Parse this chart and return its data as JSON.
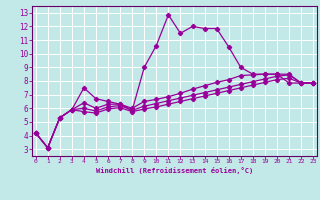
{
  "xlabel": "Windchill (Refroidissement éolien,°C)",
  "background_color": "#c2e8e8",
  "grid_color": "#b0d8d8",
  "line_color": "#990099",
  "axis_color": "#660066",
  "x_ticks": [
    0,
    1,
    2,
    3,
    4,
    5,
    6,
    7,
    8,
    9,
    10,
    11,
    12,
    13,
    14,
    15,
    16,
    17,
    18,
    19,
    20,
    21,
    22,
    23
  ],
  "y_ticks": [
    3,
    4,
    5,
    6,
    7,
    8,
    9,
    10,
    11,
    12,
    13
  ],
  "xlim": [
    -0.3,
    23.3
  ],
  "ylim": [
    2.5,
    13.5
  ],
  "series": [
    {
      "x": [
        0,
        1,
        2,
        3,
        4,
        5,
        6,
        7,
        8,
        9,
        10,
        11,
        12,
        13,
        14,
        15,
        16,
        17,
        18,
        19,
        20,
        21,
        22,
        23
      ],
      "y": [
        4.2,
        3.1,
        5.3,
        5.9,
        7.5,
        6.7,
        6.5,
        6.3,
        5.85,
        9.0,
        10.6,
        12.85,
        11.5,
        12.0,
        11.85,
        11.85,
        10.5,
        9.0,
        8.5,
        8.5,
        8.5,
        7.85,
        7.85,
        7.85
      ]
    },
    {
      "x": [
        0,
        1,
        2,
        3,
        4,
        5,
        6,
        7,
        8,
        9,
        10,
        11,
        12,
        13,
        14,
        15,
        16,
        17,
        18,
        19,
        20,
        21,
        22,
        23
      ],
      "y": [
        4.2,
        3.1,
        5.3,
        5.9,
        6.4,
        6.0,
        6.3,
        6.3,
        6.0,
        6.5,
        6.65,
        6.85,
        7.1,
        7.4,
        7.65,
        7.9,
        8.1,
        8.4,
        8.45,
        8.5,
        8.5,
        8.5,
        7.85,
        7.85
      ]
    },
    {
      "x": [
        0,
        1,
        2,
        3,
        4,
        5,
        6,
        7,
        8,
        9,
        10,
        11,
        12,
        13,
        14,
        15,
        16,
        17,
        18,
        19,
        20,
        21,
        22,
        23
      ],
      "y": [
        4.2,
        3.1,
        5.3,
        5.9,
        6.0,
        5.8,
        6.1,
        6.2,
        5.85,
        6.15,
        6.35,
        6.55,
        6.75,
        6.95,
        7.15,
        7.35,
        7.55,
        7.75,
        7.95,
        8.15,
        8.35,
        8.45,
        7.85,
        7.85
      ]
    },
    {
      "x": [
        0,
        1,
        2,
        3,
        4,
        5,
        6,
        7,
        8,
        9,
        10,
        11,
        12,
        13,
        14,
        15,
        16,
        17,
        18,
        19,
        20,
        21,
        22,
        23
      ],
      "y": [
        4.2,
        3.1,
        5.3,
        5.9,
        5.75,
        5.65,
        5.95,
        6.05,
        5.75,
        5.95,
        6.1,
        6.3,
        6.5,
        6.7,
        6.9,
        7.1,
        7.3,
        7.5,
        7.7,
        7.9,
        8.1,
        8.2,
        7.85,
        7.85
      ]
    }
  ]
}
